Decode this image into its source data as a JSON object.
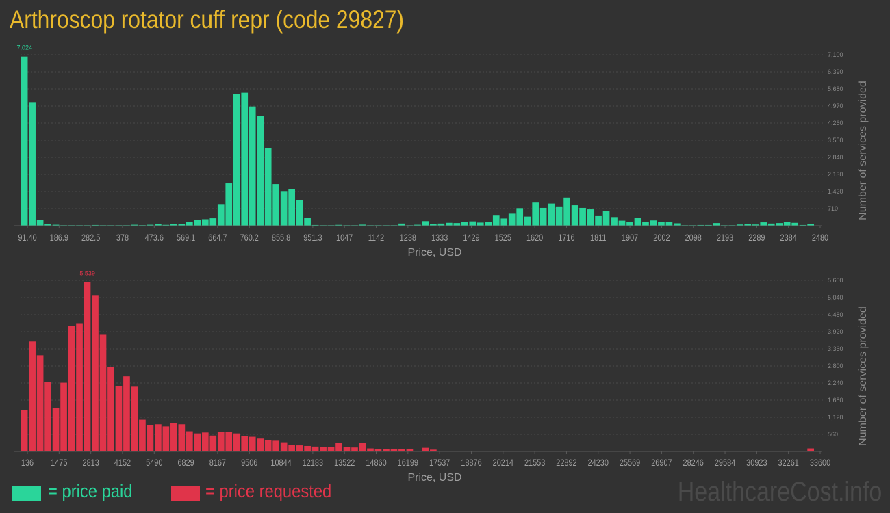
{
  "title": "Arthroscop rotator cuff repr (code 29827)",
  "legend": {
    "paid_label": "= price paid",
    "requested_label": "= price requested"
  },
  "watermark": "HealthcareCost.info",
  "colors": {
    "paid": "#2ad59a",
    "requested": "#e0344a",
    "title": "#e9b92c",
    "axis_text": "#9a9a9a"
  },
  "chart_data": [
    {
      "type": "bar",
      "series_name": "price paid",
      "xlabel": "Price, USD",
      "ylabel": "Number of services provided",
      "x_tick_labels": [
        "91.40",
        "186.9",
        "282.5",
        "378",
        "473.6",
        "569.1",
        "664.7",
        "760.2",
        "855.8",
        "951.3",
        "1047",
        "1142",
        "1238",
        "1333",
        "1429",
        "1525",
        "1620",
        "1716",
        "1811",
        "1907",
        "2002",
        "2098",
        "2193",
        "2289",
        "2384",
        "2480"
      ],
      "y_ticks": [
        "710",
        "1,420",
        "2,130",
        "2,840",
        "3,550",
        "4,260",
        "4,970",
        "5,680",
        "6,390",
        "7,100"
      ],
      "ylim": [
        0,
        7100
      ],
      "max_label": "7,024",
      "values": [
        7024,
        5130,
        250,
        60,
        40,
        15,
        10,
        10,
        20,
        30,
        15,
        10,
        10,
        15,
        40,
        25,
        40,
        80,
        35,
        60,
        80,
        150,
        240,
        270,
        310,
        900,
        1760,
        5480,
        5520,
        4950,
        4560,
        3210,
        1730,
        1440,
        1530,
        1060,
        340,
        30,
        20,
        15,
        35,
        20,
        15,
        45,
        20,
        10,
        10,
        20,
        90,
        20,
        40,
        190,
        70,
        90,
        120,
        110,
        150,
        180,
        130,
        150,
        420,
        300,
        500,
        730,
        380,
        960,
        740,
        920,
        800,
        1170,
        850,
        740,
        680,
        400,
        620,
        360,
        210,
        170,
        330,
        160,
        220,
        150,
        160,
        100,
        20,
        10,
        30,
        30,
        110,
        20,
        10,
        50,
        70,
        50,
        140,
        90,
        110,
        150,
        120,
        30,
        70
      ]
    },
    {
      "type": "bar",
      "series_name": "price requested",
      "xlabel": "Price, USD",
      "ylabel": "Number of services provided",
      "x_tick_labels": [
        "136",
        "1475",
        "2813",
        "4152",
        "5490",
        "6829",
        "8167",
        "9506",
        "10844",
        "12183",
        "13522",
        "14860",
        "16199",
        "17537",
        "18876",
        "20214",
        "21553",
        "22892",
        "24230",
        "25569",
        "26907",
        "28246",
        "29584",
        "30923",
        "32261",
        "33600"
      ],
      "y_ticks": [
        "560",
        "1,120",
        "1,680",
        "2,240",
        "2,800",
        "3,360",
        "3,920",
        "4,480",
        "5,040",
        "5,600"
      ],
      "ylim": [
        0,
        5600
      ],
      "max_label": "5,539",
      "values": [
        1350,
        3600,
        3150,
        2280,
        1420,
        2250,
        4100,
        4200,
        5539,
        5100,
        3820,
        2770,
        2140,
        2460,
        2120,
        1040,
        870,
        890,
        820,
        920,
        890,
        660,
        590,
        620,
        520,
        640,
        640,
        590,
        510,
        480,
        420,
        380,
        350,
        300,
        220,
        200,
        180,
        160,
        140,
        150,
        290,
        150,
        130,
        270,
        100,
        80,
        70,
        90,
        70,
        90,
        10,
        120,
        60,
        10,
        10,
        10,
        10,
        10,
        10,
        10,
        10,
        10,
        10,
        10,
        10,
        10,
        10,
        10,
        10,
        10,
        10,
        10,
        10,
        10,
        10,
        10,
        10,
        10,
        10,
        10,
        10,
        10,
        10,
        10,
        10,
        10,
        10,
        10,
        10,
        10,
        10,
        10,
        10,
        10,
        10,
        10,
        10,
        10,
        10,
        10,
        100
      ]
    }
  ]
}
